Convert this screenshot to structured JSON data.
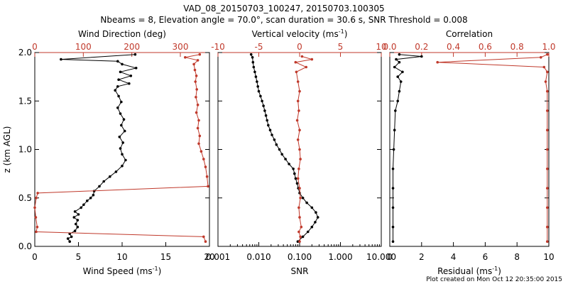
{
  "figure": {
    "title_line1": "VAD_08_20150703_100247, 20150703.100305",
    "title_line2": "Nbeams = 8, Elevation angle = 70.0°, scan duration = 30.6 s, SNR Threshold = 0.008",
    "footer": "Plot created on Mon Oct 12 20:35:00 2015",
    "colors": {
      "black": "#000000",
      "red": "#c0392b"
    }
  },
  "chart_data": [
    {
      "type": "line",
      "panel": "wind",
      "ylabel": "z (km AGL)",
      "ylim": [
        0,
        2.0
      ],
      "yticks": [
        "0.0",
        "0.5",
        "1.0",
        "1.5",
        "2.0"
      ],
      "bottom_axis": {
        "label": "Wind Speed (ms",
        "label_sup": "-1",
        "label_end": ")",
        "range": [
          0,
          20
        ],
        "ticks": [
          "0",
          "5",
          "10",
          "15",
          "20"
        ]
      },
      "top_axis": {
        "label": "Wind Direction (deg)",
        "range": [
          0,
          360
        ],
        "ticks": [
          "0",
          "100",
          "200",
          "300"
        ]
      },
      "series": [
        {
          "name": "Wind Speed",
          "color": "#000000",
          "axis": "bottom",
          "points": [
            [
              4.0,
              0.05
            ],
            [
              3.8,
              0.08
            ],
            [
              4.2,
              0.1
            ],
            [
              4.0,
              0.13
            ],
            [
              4.6,
              0.16
            ],
            [
              4.9,
              0.2
            ],
            [
              4.7,
              0.23
            ],
            [
              4.9,
              0.27
            ],
            [
              4.5,
              0.3
            ],
            [
              5.0,
              0.33
            ],
            [
              4.6,
              0.36
            ],
            [
              5.3,
              0.4
            ],
            [
              5.6,
              0.43
            ],
            [
              6.0,
              0.47
            ],
            [
              6.4,
              0.5
            ],
            [
              6.7,
              0.53
            ],
            [
              6.8,
              0.57
            ],
            [
              7.4,
              0.62
            ],
            [
              7.9,
              0.67
            ],
            [
              8.6,
              0.72
            ],
            [
              9.3,
              0.77
            ],
            [
              10.0,
              0.83
            ],
            [
              10.4,
              0.89
            ],
            [
              10.0,
              0.95
            ],
            [
              9.8,
              1.01
            ],
            [
              10.1,
              1.07
            ],
            [
              9.7,
              1.13
            ],
            [
              10.3,
              1.19
            ],
            [
              9.9,
              1.25
            ],
            [
              10.2,
              1.31
            ],
            [
              9.8,
              1.37
            ],
            [
              9.5,
              1.43
            ],
            [
              9.9,
              1.49
            ],
            [
              9.6,
              1.55
            ],
            [
              9.2,
              1.61
            ],
            [
              9.5,
              1.65
            ],
            [
              10.8,
              1.68
            ],
            [
              9.6,
              1.72
            ],
            [
              11.0,
              1.76
            ],
            [
              9.8,
              1.8
            ],
            [
              11.6,
              1.84
            ],
            [
              10.0,
              1.88
            ],
            [
              9.5,
              1.91
            ],
            [
              3.0,
              1.93
            ],
            [
              11.5,
              1.98
            ]
          ]
        },
        {
          "name": "Wind Direction",
          "color": "#c0392b",
          "axis": "top",
          "points": [
            [
              352,
              0.05
            ],
            [
              348,
              0.1
            ],
            [
              3,
              0.15
            ],
            [
              5,
              0.2
            ],
            [
              2,
              0.3
            ],
            [
              0,
              0.4
            ],
            [
              3,
              0.5
            ],
            [
              6,
              0.55
            ],
            [
              357,
              0.62
            ],
            [
              355,
              0.72
            ],
            [
              352,
              0.82
            ],
            [
              348,
              0.9
            ],
            [
              343,
              0.98
            ],
            [
              338,
              1.06
            ],
            [
              340,
              1.14
            ],
            [
              336,
              1.22
            ],
            [
              338,
              1.3
            ],
            [
              333,
              1.38
            ],
            [
              336,
              1.46
            ],
            [
              332,
              1.54
            ],
            [
              334,
              1.62
            ],
            [
              331,
              1.7
            ],
            [
              333,
              1.76
            ],
            [
              330,
              1.82
            ],
            [
              328,
              1.88
            ],
            [
              336,
              1.92
            ],
            [
              310,
              1.95
            ],
            [
              340,
              1.98
            ]
          ]
        }
      ]
    },
    {
      "type": "line",
      "panel": "vertical",
      "ylim": [
        0,
        2.0
      ],
      "bottom_axis": {
        "label": "SNR",
        "scale": "log",
        "range": [
          0.001,
          10
        ],
        "ticks": [
          "0.001",
          "0.010",
          "0.100",
          "1.000",
          "10.000"
        ]
      },
      "top_axis": {
        "label": "Vertical velocity (ms",
        "label_sup": "-1",
        "label_end": ")",
        "range": [
          -10,
          10
        ],
        "ticks": [
          "-10",
          "-5",
          "0",
          "5",
          "10"
        ]
      },
      "series": [
        {
          "name": "SNR",
          "color": "#000000",
          "axis": "bottom",
          "points": [
            [
              0.09,
              0.05
            ],
            [
              0.12,
              0.1
            ],
            [
              0.16,
              0.15
            ],
            [
              0.2,
              0.2
            ],
            [
              0.24,
              0.25
            ],
            [
              0.28,
              0.3
            ],
            [
              0.25,
              0.35
            ],
            [
              0.2,
              0.4
            ],
            [
              0.15,
              0.45
            ],
            [
              0.12,
              0.5
            ],
            [
              0.1,
              0.55
            ],
            [
              0.093,
              0.6
            ],
            [
              0.087,
              0.65
            ],
            [
              0.08,
              0.7
            ],
            [
              0.075,
              0.75
            ],
            [
              0.07,
              0.8
            ],
            [
              0.055,
              0.85
            ],
            [
              0.045,
              0.9
            ],
            [
              0.037,
              0.95
            ],
            [
              0.032,
              1.0
            ],
            [
              0.027,
              1.05
            ],
            [
              0.024,
              1.1
            ],
            [
              0.021,
              1.15
            ],
            [
              0.019,
              1.2
            ],
            [
              0.017,
              1.25
            ],
            [
              0.016,
              1.3
            ],
            [
              0.015,
              1.35
            ],
            [
              0.014,
              1.4
            ],
            [
              0.013,
              1.45
            ],
            [
              0.012,
              1.5
            ],
            [
              0.011,
              1.55
            ],
            [
              0.01,
              1.6
            ],
            [
              0.0095,
              1.65
            ],
            [
              0.009,
              1.7
            ],
            [
              0.0085,
              1.75
            ],
            [
              0.008,
              1.8
            ],
            [
              0.0075,
              1.85
            ],
            [
              0.0072,
              1.9
            ],
            [
              0.007,
              1.95
            ],
            [
              0.0065,
              1.98
            ]
          ]
        },
        {
          "name": "Vertical velocity",
          "color": "#c0392b",
          "axis": "top",
          "points": [
            [
              0.0,
              0.05
            ],
            [
              0.1,
              0.1
            ],
            [
              -0.1,
              0.15
            ],
            [
              0.2,
              0.2
            ],
            [
              0.0,
              0.3
            ],
            [
              -0.1,
              0.4
            ],
            [
              0.1,
              0.5
            ],
            [
              0.0,
              0.6
            ],
            [
              -0.2,
              0.7
            ],
            [
              -0.1,
              0.8
            ],
            [
              0.1,
              0.9
            ],
            [
              0.0,
              1.0
            ],
            [
              -0.2,
              1.1
            ],
            [
              0.0,
              1.2
            ],
            [
              -0.3,
              1.3
            ],
            [
              -0.1,
              1.4
            ],
            [
              -0.2,
              1.5
            ],
            [
              0.0,
              1.6
            ],
            [
              -0.2,
              1.7
            ],
            [
              -0.4,
              1.8
            ],
            [
              0.8,
              1.85
            ],
            [
              -0.5,
              1.9
            ],
            [
              1.5,
              1.93
            ],
            [
              0.3,
              1.96
            ]
          ]
        }
      ]
    },
    {
      "type": "line",
      "panel": "correlation",
      "ylim": [
        0,
        2.0
      ],
      "bottom_axis": {
        "label": "Residual (ms",
        "label_sup": "-1",
        "label_end": ")",
        "range": [
          0,
          10
        ],
        "ticks": [
          "0",
          "2",
          "4",
          "6",
          "8",
          "10"
        ]
      },
      "top_axis": {
        "label": "Correlation",
        "range": [
          0,
          1.0
        ],
        "ticks": [
          "0.0",
          "0.2",
          "0.4",
          "0.6",
          "0.8",
          "1.0"
        ]
      },
      "series": [
        {
          "name": "Residual",
          "color": "#000000",
          "axis": "bottom",
          "points": [
            [
              0.2,
              0.05
            ],
            [
              0.2,
              0.2
            ],
            [
              0.2,
              0.4
            ],
            [
              0.2,
              0.6
            ],
            [
              0.2,
              0.8
            ],
            [
              0.25,
              1.0
            ],
            [
              0.3,
              1.2
            ],
            [
              0.35,
              1.4
            ],
            [
              0.5,
              1.5
            ],
            [
              0.6,
              1.6
            ],
            [
              0.7,
              1.7
            ],
            [
              0.5,
              1.75
            ],
            [
              0.8,
              1.8
            ],
            [
              0.3,
              1.85
            ],
            [
              0.6,
              1.9
            ],
            [
              0.4,
              1.93
            ],
            [
              2.0,
              1.96
            ],
            [
              0.6,
              1.98
            ]
          ]
        },
        {
          "name": "Correlation",
          "color": "#c0392b",
          "axis": "top",
          "points": [
            [
              0.99,
              0.05
            ],
            [
              0.99,
              0.2
            ],
            [
              0.99,
              0.4
            ],
            [
              0.99,
              0.6
            ],
            [
              0.99,
              0.8
            ],
            [
              0.99,
              1.0
            ],
            [
              0.99,
              1.2
            ],
            [
              0.99,
              1.4
            ],
            [
              0.99,
              1.6
            ],
            [
              0.98,
              1.7
            ],
            [
              0.99,
              1.8
            ],
            [
              0.97,
              1.85
            ],
            [
              0.3,
              1.9
            ],
            [
              0.95,
              1.95
            ],
            [
              0.99,
              1.98
            ]
          ]
        }
      ]
    }
  ]
}
